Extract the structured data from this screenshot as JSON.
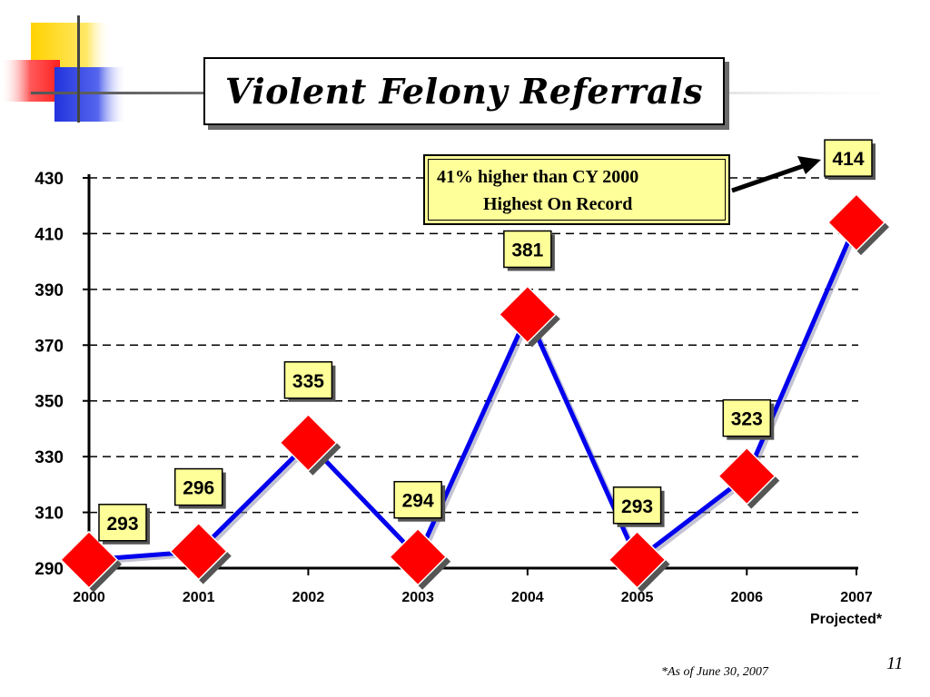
{
  "slide": {
    "title": "Violent Felony Referrals",
    "footnote": "*As of June 30, 2007",
    "page_number": "11"
  },
  "callout": {
    "line1": "41% higher than CY 2000",
    "line2": "Highest On Record"
  },
  "colors": {
    "line": "#0000ee",
    "marker": "#ff0000",
    "label_fill": "#ffff99",
    "callout_fill": "#ffff99"
  },
  "chart_data": {
    "type": "line",
    "title": "Violent Felony Referrals",
    "categories": [
      "2000",
      "2001",
      "2002",
      "2003",
      "2004",
      "2005",
      "2006",
      "2007"
    ],
    "x_sublabel_last": "Projected*",
    "series": [
      {
        "values": [
          293,
          296,
          335,
          294,
          381,
          293,
          323,
          414
        ]
      }
    ],
    "data_labels": [
      "293",
      "296",
      "335",
      "294",
      "381",
      "293",
      "323",
      "414"
    ],
    "ylim": [
      290,
      430
    ],
    "yticks": [
      290,
      310,
      330,
      350,
      370,
      390,
      410,
      430
    ],
    "grid": true,
    "grid_style": "dashed",
    "marker": "diamond",
    "xlabel": "",
    "ylabel": ""
  }
}
